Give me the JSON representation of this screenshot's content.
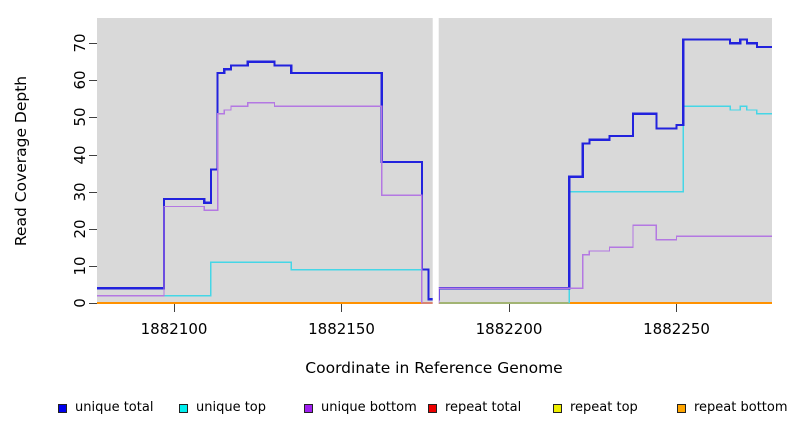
{
  "figure": {
    "y_axis_title": "Read Coverage Depth",
    "x_axis_title": "Coordinate in Reference Genome",
    "panel_bg": "#d9d9d9",
    "tick_color": "#404040"
  },
  "chart_data": {
    "type": "line",
    "subtype": "step-coverage",
    "title": "",
    "xlabel": "Coordinate in Reference Genome",
    "ylabel": "Read Coverage Depth",
    "grid": false,
    "legend_position": "bottom",
    "x_domain": [
      1882077,
      1882278.5
    ],
    "y_domain": [
      0,
      76.8
    ],
    "x_ticks": [
      1882100,
      1882150,
      1882200,
      1882250
    ],
    "y_ticks": [
      0,
      10,
      20,
      30,
      40,
      50,
      60,
      70
    ],
    "gap": {
      "from": 1882177.2,
      "to": 1882179,
      "color": "#ffffff"
    },
    "series": [
      {
        "name": "repeat total",
        "color": "#e00000",
        "width": 1.3,
        "points": [
          [
            1882077,
            0
          ]
        ]
      },
      {
        "name": "repeat top",
        "color": "#eeee00",
        "width": 1.3,
        "points": [
          [
            1882077,
            0
          ]
        ]
      },
      {
        "name": "repeat bottom",
        "color": "#ff9100",
        "width": 1.6,
        "points": [
          [
            1882077,
            0
          ]
        ]
      },
      {
        "name": "unique top",
        "color": "#45d6e6",
        "width": 1.4,
        "points": [
          [
            1882077,
            2
          ],
          [
            1882111,
            11
          ],
          [
            1882135,
            9
          ],
          [
            1882176,
            1
          ],
          [
            1882179,
            0
          ],
          [
            1882218,
            30
          ],
          [
            1882252,
            53
          ],
          [
            1882266,
            52
          ],
          [
            1882269,
            53
          ],
          [
            1882271,
            52
          ],
          [
            1882274,
            51
          ]
        ]
      },
      {
        "name": "unique total",
        "color": "#2222dd",
        "width": 2.2,
        "points": [
          [
            1882077,
            4
          ],
          [
            1882097,
            28
          ],
          [
            1882109,
            27
          ],
          [
            1882111,
            36
          ],
          [
            1882113,
            62
          ],
          [
            1882115,
            63
          ],
          [
            1882117,
            64
          ],
          [
            1882122,
            65
          ],
          [
            1882130,
            64
          ],
          [
            1882135,
            62
          ],
          [
            1882162,
            38
          ],
          [
            1882174,
            9
          ],
          [
            1882176,
            1
          ],
          [
            1882179,
            4
          ],
          [
            1882218,
            34
          ],
          [
            1882222,
            43
          ],
          [
            1882224,
            44
          ],
          [
            1882230,
            45
          ],
          [
            1882237,
            51
          ],
          [
            1882244,
            47
          ],
          [
            1882250,
            48
          ],
          [
            1882252,
            71
          ],
          [
            1882266,
            70
          ],
          [
            1882269,
            71
          ],
          [
            1882271,
            70
          ],
          [
            1882274,
            69
          ]
        ]
      },
      {
        "name": "unique bottom",
        "color": "#b478e2",
        "width": 1.4,
        "points": [
          [
            1882077,
            2
          ],
          [
            1882097,
            26
          ],
          [
            1882109,
            25
          ],
          [
            1882113,
            51
          ],
          [
            1882115,
            52
          ],
          [
            1882117,
            53
          ],
          [
            1882122,
            54
          ],
          [
            1882130,
            53
          ],
          [
            1882162,
            29
          ],
          [
            1882174,
            0
          ],
          [
            1882179,
            4
          ],
          [
            1882222,
            13
          ],
          [
            1882224,
            14
          ],
          [
            1882230,
            15
          ],
          [
            1882237,
            21
          ],
          [
            1882244,
            17
          ],
          [
            1882250,
            18
          ]
        ]
      }
    ],
    "legend": [
      {
        "label": "unique total",
        "color": "#0000ee"
      },
      {
        "label": "unique top",
        "color": "#00eeee"
      },
      {
        "label": "unique bottom",
        "color": "#a020f0"
      },
      {
        "label": "repeat total",
        "color": "#ee0000"
      },
      {
        "label": "repeat top",
        "color": "#eeee00"
      },
      {
        "label": "repeat bottom",
        "color": "#ffa500"
      }
    ]
  }
}
